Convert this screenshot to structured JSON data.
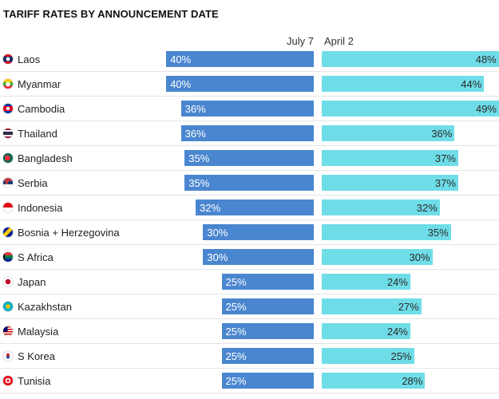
{
  "chart_data": {
    "type": "bar",
    "title": "TARIFF RATES BY ANNOUNCEMENT DATE",
    "series": [
      {
        "name": "July 7",
        "values": [
          40,
          40,
          36,
          36,
          35,
          35,
          32,
          30,
          30,
          25,
          25,
          25,
          25,
          25
        ],
        "color": "#4a86cf"
      },
      {
        "name": "April 2",
        "values": [
          48,
          44,
          49,
          36,
          37,
          37,
          32,
          35,
          30,
          24,
          27,
          24,
          25,
          28
        ],
        "color": "#6fdde8"
      }
    ],
    "categories": [
      "Laos",
      "Myanmar",
      "Cambodia",
      "Thailand",
      "Bangladesh",
      "Serbia",
      "Indonesia",
      "Bosnia + Herzegovina",
      "S Africa",
      "Japan",
      "Kazakhstan",
      "Malaysia",
      "S Korea",
      "Tunisia"
    ],
    "flag_icons": [
      "laos-flag-icon",
      "myanmar-flag-icon",
      "cambodia-flag-icon",
      "thailand-flag-icon",
      "bangladesh-flag-icon",
      "serbia-flag-icon",
      "indonesia-flag-icon",
      "bosnia-flag-icon",
      "south-africa-flag-icon",
      "japan-flag-icon",
      "kazakhstan-flag-icon",
      "malaysia-flag-icon",
      "south-korea-flag-icon",
      "tunisia-flag-icon"
    ],
    "value_suffix": "%",
    "xlim": [
      0,
      50
    ],
    "grid": false,
    "legend": "column headers above bars"
  }
}
